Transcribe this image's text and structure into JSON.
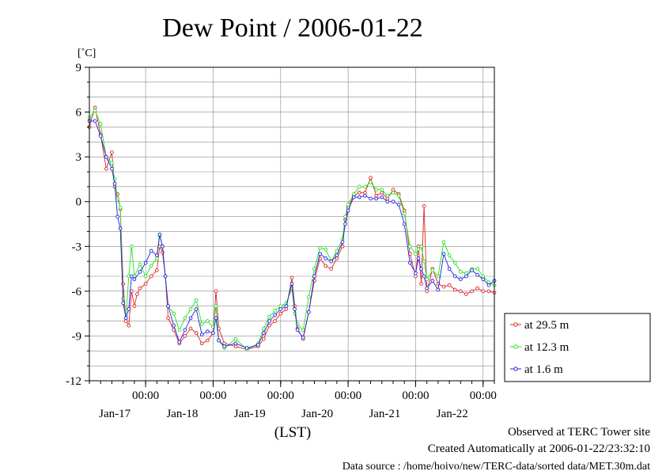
{
  "chart_data": {
    "type": "line",
    "title": "Dew Point / 2006-01-22",
    "ylabel": "[˚C]",
    "xlabel": "(LST)",
    "ylim": [
      -12,
      9
    ],
    "yticks": [
      9,
      6,
      3,
      0,
      -3,
      -6,
      -9,
      -12
    ],
    "xlim": [
      0,
      144
    ],
    "time_labels": [
      {
        "x": 20,
        "time": "00:00",
        "date": "Jan-17"
      },
      {
        "x": 44,
        "time": "00:00",
        "date": "Jan-18"
      },
      {
        "x": 68,
        "time": "00:00",
        "date": "Jan-19"
      },
      {
        "x": 92,
        "time": "00:00",
        "date": "Jan-20"
      },
      {
        "x": 116,
        "time": "00:00",
        "date": "Jan-21"
      },
      {
        "x": 140,
        "time": "00:00",
        "date": "Jan-22"
      }
    ],
    "grid": true,
    "legend_position": "right",
    "series": [
      {
        "name": "at 29.5 m",
        "color": "#e02020",
        "points": [
          [
            0,
            5.0
          ],
          [
            2,
            6.3
          ],
          [
            4,
            4.5
          ],
          [
            6,
            2.2
          ],
          [
            8,
            3.3
          ],
          [
            9,
            1.0
          ],
          [
            10,
            0.5
          ],
          [
            11,
            -0.5
          ],
          [
            12,
            -5.5
          ],
          [
            13,
            -8.0
          ],
          [
            14,
            -8.3
          ],
          [
            15,
            -6.0
          ],
          [
            16,
            -7.0
          ],
          [
            17,
            -6.2
          ],
          [
            18,
            -5.8
          ],
          [
            20,
            -5.5
          ],
          [
            22,
            -5.0
          ],
          [
            24,
            -4.6
          ],
          [
            25,
            -3.0
          ],
          [
            26,
            -3.4
          ],
          [
            27,
            -5.0
          ],
          [
            28,
            -7.8
          ],
          [
            30,
            -8.6
          ],
          [
            32,
            -9.5
          ],
          [
            34,
            -9.0
          ],
          [
            36,
            -8.5
          ],
          [
            38,
            -8.8
          ],
          [
            40,
            -9.5
          ],
          [
            42,
            -9.3
          ],
          [
            44,
            -8.8
          ],
          [
            45,
            -6.0
          ],
          [
            46,
            -8.5
          ],
          [
            48,
            -9.5
          ],
          [
            52,
            -9.7
          ],
          [
            56,
            -9.9
          ],
          [
            60,
            -9.7
          ],
          [
            62,
            -9.2
          ],
          [
            64,
            -8.3
          ],
          [
            66,
            -8.0
          ],
          [
            68,
            -7.5
          ],
          [
            70,
            -7.2
          ],
          [
            72,
            -5.1
          ],
          [
            73,
            -7.0
          ],
          [
            74,
            -8.5
          ],
          [
            76,
            -9.2
          ],
          [
            78,
            -7.4
          ],
          [
            80,
            -5.3
          ],
          [
            82,
            -3.8
          ],
          [
            84,
            -4.3
          ],
          [
            86,
            -4.5
          ],
          [
            88,
            -3.8
          ],
          [
            90,
            -3.0
          ],
          [
            91,
            -1.2
          ],
          [
            92,
            -0.4
          ],
          [
            94,
            0.4
          ],
          [
            96,
            0.6
          ],
          [
            98,
            0.6
          ],
          [
            100,
            1.6
          ],
          [
            102,
            0.4
          ],
          [
            104,
            0.6
          ],
          [
            106,
            0.2
          ],
          [
            108,
            0.8
          ],
          [
            110,
            0.5
          ],
          [
            112,
            -0.6
          ],
          [
            114,
            -3.5
          ],
          [
            116,
            -5.0
          ],
          [
            117,
            -3.0
          ],
          [
            118,
            -5.5
          ],
          [
            119,
            -0.3
          ],
          [
            120,
            -6.0
          ],
          [
            122,
            -4.5
          ],
          [
            124,
            -5.5
          ],
          [
            126,
            -5.7
          ],
          [
            128,
            -5.6
          ],
          [
            130,
            -5.9
          ],
          [
            132,
            -6.0
          ],
          [
            134,
            -6.2
          ],
          [
            136,
            -6.0
          ],
          [
            138,
            -5.8
          ],
          [
            140,
            -6.0
          ],
          [
            142,
            -6.0
          ],
          [
            144,
            -6.1
          ]
        ]
      },
      {
        "name": "at 12.3 m",
        "color": "#20e020",
        "points": [
          [
            0,
            5.6
          ],
          [
            2,
            6.1
          ],
          [
            4,
            5.2
          ],
          [
            6,
            3.0
          ],
          [
            8,
            2.6
          ],
          [
            9,
            1.5
          ],
          [
            10,
            0.2
          ],
          [
            11,
            -0.4
          ],
          [
            12,
            -6.5
          ],
          [
            13,
            -7.8
          ],
          [
            14,
            -5.0
          ],
          [
            15,
            -3.0
          ],
          [
            16,
            -5.0
          ],
          [
            18,
            -4.2
          ],
          [
            20,
            -5.0
          ],
          [
            22,
            -4.3
          ],
          [
            24,
            -3.8
          ],
          [
            25,
            -2.3
          ],
          [
            26,
            -3.0
          ],
          [
            27,
            -5.0
          ],
          [
            28,
            -7.0
          ],
          [
            30,
            -7.5
          ],
          [
            32,
            -8.6
          ],
          [
            34,
            -7.8
          ],
          [
            36,
            -7.2
          ],
          [
            38,
            -6.6
          ],
          [
            40,
            -8.2
          ],
          [
            42,
            -8.0
          ],
          [
            44,
            -8.4
          ],
          [
            45,
            -7.0
          ],
          [
            46,
            -9.3
          ],
          [
            48,
            -9.8
          ],
          [
            52,
            -9.2
          ],
          [
            56,
            -9.9
          ],
          [
            60,
            -9.5
          ],
          [
            62,
            -8.5
          ],
          [
            64,
            -7.7
          ],
          [
            66,
            -7.3
          ],
          [
            68,
            -7.0
          ],
          [
            70,
            -6.8
          ],
          [
            72,
            -5.8
          ],
          [
            73,
            -7.5
          ],
          [
            74,
            -8.2
          ],
          [
            76,
            -8.6
          ],
          [
            78,
            -6.4
          ],
          [
            80,
            -4.5
          ],
          [
            82,
            -3.1
          ],
          [
            84,
            -3.2
          ],
          [
            86,
            -4.0
          ],
          [
            88,
            -3.3
          ],
          [
            90,
            -2.5
          ],
          [
            91,
            -1.0
          ],
          [
            92,
            -0.2
          ],
          [
            94,
            0.5
          ],
          [
            96,
            1.0
          ],
          [
            98,
            1.0
          ],
          [
            100,
            1.3
          ],
          [
            102,
            0.8
          ],
          [
            104,
            0.8
          ],
          [
            106,
            0.4
          ],
          [
            108,
            0.6
          ],
          [
            110,
            0.4
          ],
          [
            112,
            -0.8
          ],
          [
            114,
            -3.0
          ],
          [
            116,
            -3.5
          ],
          [
            117,
            -3.2
          ],
          [
            118,
            -3.0
          ],
          [
            119,
            -4.0
          ],
          [
            120,
            -5.2
          ],
          [
            122,
            -4.6
          ],
          [
            124,
            -5.0
          ],
          [
            126,
            -2.7
          ],
          [
            128,
            -3.6
          ],
          [
            130,
            -4.1
          ],
          [
            132,
            -4.7
          ],
          [
            134,
            -4.8
          ],
          [
            136,
            -4.5
          ],
          [
            138,
            -4.5
          ],
          [
            140,
            -5.0
          ],
          [
            142,
            -5.4
          ],
          [
            144,
            -5.6
          ]
        ]
      },
      {
        "name": "at 1.6 m",
        "color": "#2020e0",
        "points": [
          [
            0,
            5.4
          ],
          [
            2,
            5.4
          ],
          [
            4,
            4.4
          ],
          [
            6,
            3.0
          ],
          [
            8,
            2.2
          ],
          [
            9,
            1.2
          ],
          [
            10,
            -1.0
          ],
          [
            11,
            -1.8
          ],
          [
            12,
            -6.8
          ],
          [
            13,
            -7.8
          ],
          [
            14,
            -7.2
          ],
          [
            15,
            -5.0
          ],
          [
            16,
            -5.2
          ],
          [
            18,
            -4.7
          ],
          [
            20,
            -4.1
          ],
          [
            22,
            -3.3
          ],
          [
            24,
            -3.6
          ],
          [
            25,
            -2.2
          ],
          [
            26,
            -3.0
          ],
          [
            27,
            -5.0
          ],
          [
            28,
            -7.0
          ],
          [
            30,
            -8.3
          ],
          [
            32,
            -9.4
          ],
          [
            34,
            -8.6
          ],
          [
            36,
            -7.8
          ],
          [
            38,
            -7.2
          ],
          [
            40,
            -8.9
          ],
          [
            42,
            -8.7
          ],
          [
            44,
            -8.8
          ],
          [
            45,
            -7.8
          ],
          [
            46,
            -9.3
          ],
          [
            48,
            -9.7
          ],
          [
            52,
            -9.5
          ],
          [
            56,
            -9.8
          ],
          [
            60,
            -9.6
          ],
          [
            62,
            -8.8
          ],
          [
            64,
            -8.0
          ],
          [
            66,
            -7.6
          ],
          [
            68,
            -7.2
          ],
          [
            70,
            -7.0
          ],
          [
            72,
            -5.5
          ],
          [
            73,
            -7.2
          ],
          [
            74,
            -8.6
          ],
          [
            76,
            -9.1
          ],
          [
            78,
            -7.4
          ],
          [
            80,
            -5.0
          ],
          [
            82,
            -3.5
          ],
          [
            84,
            -3.8
          ],
          [
            86,
            -4.0
          ],
          [
            88,
            -3.6
          ],
          [
            90,
            -2.7
          ],
          [
            91,
            -1.5
          ],
          [
            92,
            -0.6
          ],
          [
            94,
            0.3
          ],
          [
            96,
            0.3
          ],
          [
            98,
            0.4
          ],
          [
            100,
            0.2
          ],
          [
            102,
            0.2
          ],
          [
            104,
            0.3
          ],
          [
            106,
            0.0
          ],
          [
            108,
            0.0
          ],
          [
            110,
            -0.2
          ],
          [
            112,
            -1.5
          ],
          [
            114,
            -4.1
          ],
          [
            116,
            -4.8
          ],
          [
            117,
            -3.8
          ],
          [
            118,
            -4.5
          ],
          [
            119,
            -5.0
          ],
          [
            120,
            -5.8
          ],
          [
            122,
            -5.3
          ],
          [
            124,
            -5.9
          ],
          [
            126,
            -3.5
          ],
          [
            128,
            -4.5
          ],
          [
            130,
            -5.0
          ],
          [
            132,
            -5.2
          ],
          [
            134,
            -5.0
          ],
          [
            136,
            -4.6
          ],
          [
            138,
            -4.9
          ],
          [
            140,
            -5.2
          ],
          [
            142,
            -5.6
          ],
          [
            144,
            -5.3
          ]
        ]
      }
    ]
  },
  "footer": {
    "observed": "Observed at TERC Tower site",
    "created": "Created Automatically at 2006-01-22/23:32:10",
    "source": "Data source : /home/hoivo/new/TERC-data/sorted  data/MET.30m.dat"
  }
}
